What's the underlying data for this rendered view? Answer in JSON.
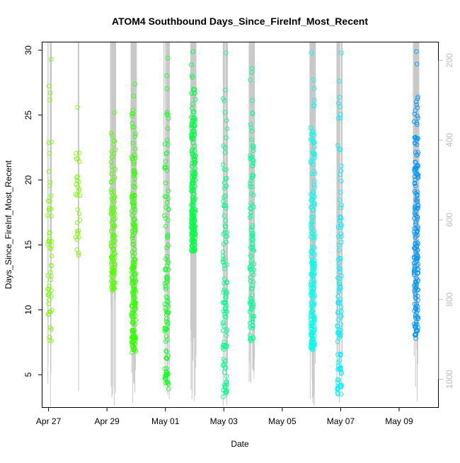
{
  "chart_data": {
    "type": "scatter",
    "title": "ATOM4 Southbound Days_Since_FireInf_Most_Recent",
    "xlabel": "Date",
    "ylabel": "Days_Since_FireInf_Most_Recent",
    "x_ticks": [
      "Apr 27",
      "Apr 29",
      "May 01",
      "May 03",
      "May 05",
      "May 07",
      "May 09"
    ],
    "y_ticks": [
      "5",
      "10",
      "15",
      "20",
      "25",
      "30"
    ],
    "y2_ticks": [
      "200",
      "400",
      "600",
      "800",
      "1000"
    ],
    "ylim": [
      2.5,
      30.6
    ],
    "y2lim": [
      1070,
      155
    ],
    "xlim": [
      "2016-04-26T19:00",
      "2016-05-10T08:00"
    ],
    "grid": false,
    "point_style": "open circles, colored by date (yellow-green to blue)",
    "secondary_series_style": "grey vertical lines, right axis",
    "series": [
      {
        "x": "2016-04-27T01:00",
        "y_range": [
          7.6,
          29.3
        ],
        "color": "#7CFC00",
        "density": "medium"
      },
      {
        "x": "2016-04-28T00:00",
        "y_range": [
          14.2,
          25.6
        ],
        "color": "#7CFC00",
        "density": "low"
      },
      {
        "x": "2016-04-29T05:00",
        "y_range": [
          11.5,
          25.2
        ],
        "color": "#55FF00",
        "density": "high"
      },
      {
        "x": "2016-04-29T22:00",
        "y_range": [
          6.7,
          27.4
        ],
        "color": "#33FF00",
        "density": "very-high"
      },
      {
        "x": "2016-05-01T01:00",
        "y_range": [
          3.9,
          29.4
        ],
        "color": "#11FF22",
        "density": "high"
      },
      {
        "x": "2016-05-01T23:00",
        "y_range": [
          14.5,
          29.9
        ],
        "color": "#00FF44",
        "density": "very-high"
      },
      {
        "x": "2016-05-03T01:00",
        "y_range": [
          3.3,
          29.8
        ],
        "color": "#00FF88",
        "density": "high"
      },
      {
        "x": "2016-05-03T23:00",
        "y_range": [
          7.6,
          28.6
        ],
        "color": "#00FF99",
        "density": "high"
      },
      {
        "x": "2016-05-06T01:00",
        "y_range": [
          6.9,
          29.8
        ],
        "color": "#00FFEE",
        "density": "very-high"
      },
      {
        "x": "2016-05-06T23:00",
        "y_range": [
          3.5,
          29.8
        ],
        "color": "#00F0FF",
        "density": "high"
      },
      {
        "x": "2016-05-09T14:00",
        "y_range": [
          7.8,
          29.9
        ],
        "color": "#0099FF",
        "density": "very-high"
      }
    ]
  }
}
